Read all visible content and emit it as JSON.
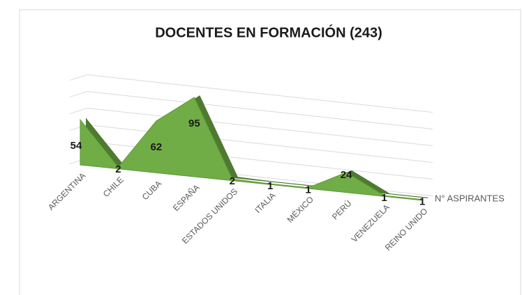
{
  "chart_data": {
    "type": "area",
    "title": "DOCENTES EN FORMACIÓN (243)",
    "categories": [
      "ARGENTINA",
      "CHILE",
      "CUBA",
      "ESPAÑA",
      "ESTADOS UNIDOS",
      "ITALIA",
      "MÉXICO",
      "PERÚ",
      "VENEZUELA",
      "REINO UNIDO"
    ],
    "series": [
      {
        "name": "N° ASPIRANTES",
        "color": "#70ad47",
        "values": [
          54,
          2,
          62,
          95,
          2,
          1,
          1,
          24,
          1,
          1
        ]
      }
    ],
    "ylim": [
      0,
      100
    ]
  }
}
